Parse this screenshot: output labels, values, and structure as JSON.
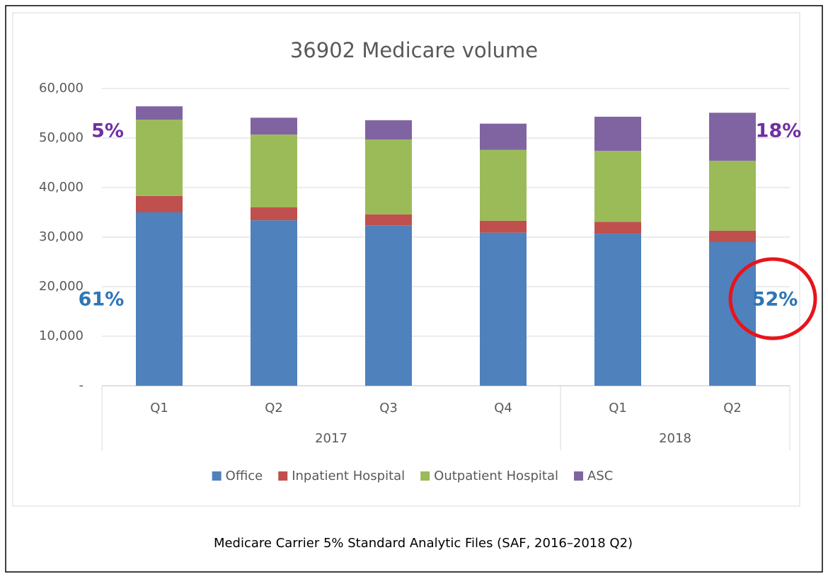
{
  "chart_data": {
    "type": "stacked_bar",
    "title": "36902 Medicare volume",
    "categories": [
      "Q1",
      "Q2",
      "Q3",
      "Q4",
      "Q1",
      "Q2"
    ],
    "category_groups": [
      {
        "name": "2017",
        "count": 4
      },
      {
        "name": "2018",
        "count": 2
      }
    ],
    "series": [
      {
        "name": "Office",
        "color": "#4f81bd",
        "values": [
          35000,
          33400,
          32400,
          30900,
          30700,
          29000
        ]
      },
      {
        "name": "Inpatient Hospital",
        "color": "#c0504d",
        "values": [
          3300,
          2600,
          2200,
          2400,
          2400,
          2300
        ]
      },
      {
        "name": "Outpatient Hospital",
        "color": "#9bbb59",
        "values": [
          15400,
          14700,
          15100,
          14300,
          14300,
          14100
        ]
      },
      {
        "name": "ASC",
        "color": "#8064a2",
        "values": [
          2700,
          3400,
          3900,
          5300,
          6900,
          9700
        ]
      }
    ],
    "ylim": [
      0,
      60000
    ],
    "yticks": [
      {
        "value": 0,
        "label": "-"
      },
      {
        "value": 10000,
        "label": "10,000"
      },
      {
        "value": 20000,
        "label": "20,000"
      },
      {
        "value": 30000,
        "label": "30,000"
      },
      {
        "value": 40000,
        "label": "40,000"
      },
      {
        "value": 50000,
        "label": "50,000"
      },
      {
        "value": 60000,
        "label": "60,000"
      }
    ],
    "grid": true,
    "legend": "bottom",
    "annotations": [
      {
        "text": "5%",
        "color": "#7030a0"
      },
      {
        "text": "61%",
        "color": "#2e75b6"
      },
      {
        "text": "18%",
        "color": "#7030a0"
      },
      {
        "text": "52%",
        "color": "#2e75b6"
      }
    ],
    "caption": "Medicare Carrier 5% Standard Analytic Files (SAF, 2016–2018 Q2)"
  }
}
